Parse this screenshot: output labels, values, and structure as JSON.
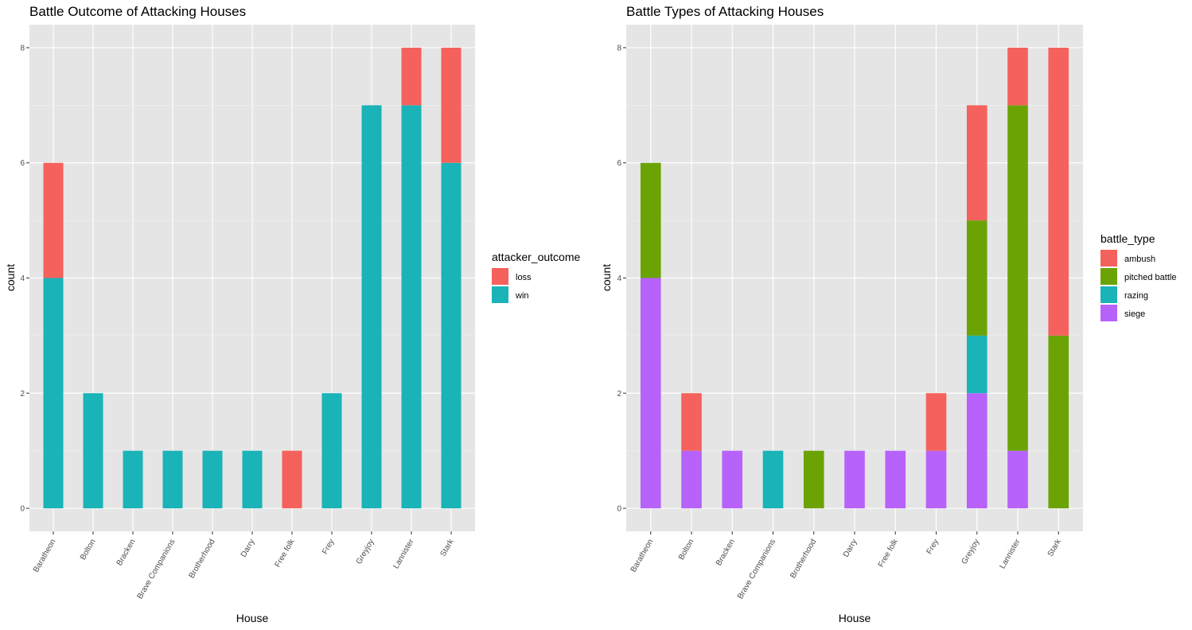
{
  "chart_data": [
    {
      "type": "bar",
      "stacked": true,
      "title": "Battle Outcome of Attacking Houses",
      "xlabel": "House",
      "ylabel": "count",
      "ylim": [
        -0.4,
        8.4
      ],
      "yticks": [
        0,
        2,
        4,
        6,
        8
      ],
      "grid": true,
      "legend_title": "attacker_outcome",
      "legend_position": "right",
      "categories": [
        "Baratheon",
        "Bolton",
        "Bracken",
        "Brave Companions",
        "Brotherhood",
        "Darry",
        "Free folk",
        "Frey",
        "Greyjoy",
        "Lannister",
        "Stark"
      ],
      "series": [
        {
          "name": "win",
          "color": "#1AB3B8",
          "values": [
            4,
            2,
            1,
            1,
            1,
            1,
            0,
            2,
            7,
            7,
            6
          ]
        },
        {
          "name": "loss",
          "color": "#F5615C",
          "values": [
            2,
            0,
            0,
            0,
            0,
            0,
            1,
            0,
            0,
            1,
            2
          ]
        }
      ],
      "legend_order": [
        "loss",
        "win"
      ]
    },
    {
      "type": "bar",
      "stacked": true,
      "title": "Battle Types of Attacking Houses",
      "xlabel": "House",
      "ylabel": "count",
      "ylim": [
        -0.4,
        8.4
      ],
      "yticks": [
        0,
        2,
        4,
        6,
        8
      ],
      "grid": true,
      "legend_title": "battle_type",
      "legend_position": "right",
      "categories": [
        "Baratheon",
        "Bolton",
        "Bracken",
        "Brave Companions",
        "Brotherhood",
        "Darry",
        "Free folk",
        "Frey",
        "Greyjoy",
        "Lannister",
        "Stark"
      ],
      "series": [
        {
          "name": "siege",
          "color": "#B762FB",
          "values": [
            4,
            1,
            1,
            0,
            0,
            1,
            1,
            1,
            2,
            1,
            0
          ]
        },
        {
          "name": "razing",
          "color": "#1AB3B8",
          "values": [
            0,
            0,
            0,
            1,
            0,
            0,
            0,
            0,
            1,
            0,
            0
          ]
        },
        {
          "name": "pitched battle",
          "color": "#6BA305",
          "values": [
            2,
            0,
            0,
            0,
            1,
            0,
            0,
            0,
            2,
            6,
            3
          ]
        },
        {
          "name": "ambush",
          "color": "#F5615C",
          "values": [
            0,
            1,
            0,
            0,
            0,
            0,
            0,
            1,
            2,
            1,
            5
          ]
        }
      ],
      "legend_order": [
        "ambush",
        "pitched battle",
        "razing",
        "siege"
      ]
    }
  ]
}
